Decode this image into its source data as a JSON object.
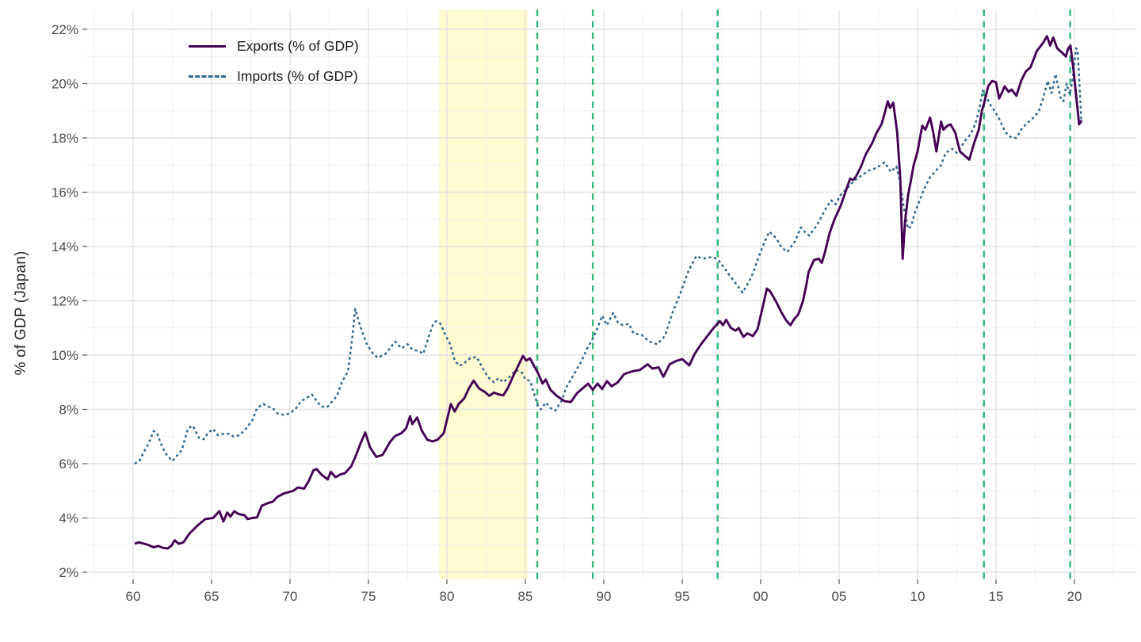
{
  "chart_data": {
    "type": "line",
    "title": "",
    "xlabel": "",
    "ylabel": "% of GDP (Japan)",
    "xlim": [
      1957.1,
      2023.9
    ],
    "ylim": [
      1.74,
      22.73
    ],
    "grid": {
      "major_color": "#e3e3e3",
      "minor_color": "#f0f0f0",
      "on": true
    },
    "x_ticks": {
      "values": [
        1960,
        1965,
        1970,
        1975,
        1980,
        1985,
        1990,
        1995,
        2000,
        2005,
        2010,
        2015,
        2020
      ],
      "labels": [
        "60",
        "65",
        "70",
        "75",
        "80",
        "85",
        "90",
        "95",
        "00",
        "05",
        "10",
        "15",
        "20"
      ]
    },
    "y_ticks": {
      "values": [
        2,
        4,
        6,
        8,
        10,
        12,
        14,
        16,
        18,
        20,
        22
      ],
      "suffix": "%"
    },
    "tick_label_color": "#4d4d4d",
    "band": {
      "from": 1979.5,
      "to": 1985.15,
      "color": "#fde725",
      "opacity": 0.22
    },
    "vlines": {
      "color": "#35b779",
      "years": [
        1985.76,
        1989.3,
        1997.26,
        2014.23,
        2019.73
      ]
    },
    "legend_position": "top-left-inside",
    "series": [
      {
        "name": "Exports (% of GDP)",
        "color": "#440154",
        "style": "solid",
        "width": 2.9,
        "x": [
          1960.1,
          1960.35,
          1960.6,
          1961.0,
          1961.3,
          1961.6,
          1961.9,
          1962.2,
          1962.45,
          1962.65,
          1962.9,
          1963.2,
          1963.6,
          1964.1,
          1964.6,
          1965.1,
          1965.5,
          1965.75,
          1966.0,
          1966.2,
          1966.45,
          1966.7,
          1967.1,
          1967.3,
          1967.6,
          1967.9,
          1968.2,
          1968.6,
          1968.9,
          1969.2,
          1969.6,
          1969.9,
          1970.2,
          1970.5,
          1970.9,
          1971.2,
          1971.5,
          1971.7,
          1972.0,
          1972.4,
          1972.6,
          1972.9,
          1973.2,
          1973.5,
          1973.9,
          1974.2,
          1974.5,
          1974.8,
          1975.1,
          1975.5,
          1975.9,
          1976.4,
          1976.7,
          1977.1,
          1977.4,
          1977.65,
          1977.8,
          1978.1,
          1978.4,
          1978.75,
          1979.1,
          1979.4,
          1979.8,
          1980.0,
          1980.25,
          1980.5,
          1980.75,
          1981.1,
          1981.4,
          1981.7,
          1982.05,
          1982.4,
          1982.7,
          1983.0,
          1983.3,
          1983.6,
          1983.9,
          1984.2,
          1984.5,
          1984.85,
          1985.05,
          1985.3,
          1985.55,
          1985.8,
          1986.1,
          1986.3,
          1986.6,
          1987.0,
          1987.5,
          1987.9,
          1988.3,
          1988.7,
          1989.0,
          1989.3,
          1989.6,
          1989.9,
          1990.2,
          1990.5,
          1990.9,
          1991.3,
          1991.6,
          1991.9,
          1992.3,
          1992.8,
          1993.1,
          1993.5,
          1993.8,
          1994.2,
          1994.6,
          1995.0,
          1995.45,
          1995.8,
          1996.2,
          1996.6,
          1997.0,
          1997.4,
          1997.6,
          1997.8,
          1998.1,
          1998.4,
          1998.6,
          1998.9,
          1999.15,
          1999.5,
          1999.8,
          2000.1,
          2000.4,
          2000.6,
          2001.0,
          2001.3,
          2001.6,
          2001.9,
          2002.1,
          2002.4,
          2002.7,
          2002.9,
          2003.05,
          2003.4,
          2003.7,
          2003.9,
          2004.1,
          2004.4,
          2004.7,
          2005.1,
          2005.4,
          2005.7,
          2005.9,
          2006.1,
          2006.4,
          2006.7,
          2007.1,
          2007.4,
          2007.7,
          2007.9,
          2008.1,
          2008.25,
          2008.45,
          2008.7,
          2008.9,
          2009.05,
          2009.2,
          2009.4,
          2009.55,
          2009.75,
          2010.0,
          2010.3,
          2010.5,
          2010.8,
          2011.0,
          2011.2,
          2011.5,
          2011.65,
          2011.9,
          2012.1,
          2012.4,
          2012.7,
          2013.0,
          2013.3,
          2013.6,
          2013.9,
          2014.1,
          2014.25,
          2014.5,
          2014.75,
          2015.0,
          2015.2,
          2015.4,
          2015.55,
          2015.8,
          2016.0,
          2016.3,
          2016.6,
          2016.9,
          2017.2,
          2017.6,
          2018.0,
          2018.25,
          2018.45,
          2018.65,
          2018.9,
          2019.2,
          2019.45,
          2019.6,
          2019.75,
          2019.95,
          2020.1,
          2020.3,
          2020.45
        ],
        "y": [
          3.05,
          3.1,
          3.07,
          3.0,
          2.92,
          2.97,
          2.9,
          2.88,
          2.98,
          3.18,
          3.05,
          3.1,
          3.43,
          3.72,
          3.96,
          4.0,
          4.25,
          3.87,
          4.2,
          4.05,
          4.25,
          4.15,
          4.1,
          3.96,
          4.0,
          4.02,
          4.45,
          4.55,
          4.6,
          4.78,
          4.9,
          4.95,
          5.0,
          5.12,
          5.08,
          5.37,
          5.76,
          5.8,
          5.6,
          5.42,
          5.7,
          5.5,
          5.6,
          5.65,
          5.9,
          6.3,
          6.75,
          7.15,
          6.6,
          6.25,
          6.32,
          6.82,
          7.02,
          7.12,
          7.3,
          7.75,
          7.46,
          7.7,
          7.22,
          6.88,
          6.82,
          6.88,
          7.12,
          7.6,
          8.2,
          7.92,
          8.2,
          8.4,
          8.77,
          9.06,
          8.77,
          8.65,
          8.5,
          8.62,
          8.55,
          8.52,
          8.8,
          9.2,
          9.55,
          9.97,
          9.8,
          9.88,
          9.6,
          9.35,
          8.95,
          9.1,
          8.72,
          8.5,
          8.3,
          8.27,
          8.6,
          8.8,
          8.95,
          8.72,
          8.95,
          8.75,
          9.04,
          8.85,
          9.0,
          9.3,
          9.36,
          9.41,
          9.45,
          9.66,
          9.5,
          9.55,
          9.2,
          9.66,
          9.78,
          9.85,
          9.62,
          10.05,
          10.4,
          10.7,
          11.0,
          11.25,
          11.1,
          11.3,
          11.0,
          10.9,
          11.0,
          10.67,
          10.8,
          10.7,
          10.95,
          11.7,
          12.45,
          12.35,
          11.95,
          11.6,
          11.3,
          11.1,
          11.3,
          11.5,
          12.0,
          12.55,
          13.05,
          13.5,
          13.55,
          13.4,
          13.8,
          14.5,
          15.0,
          15.5,
          16.0,
          16.5,
          16.45,
          16.6,
          16.95,
          17.4,
          17.8,
          18.2,
          18.5,
          18.9,
          19.35,
          19.1,
          19.3,
          18.2,
          16.5,
          13.55,
          14.9,
          15.9,
          16.35,
          17.0,
          17.5,
          18.45,
          18.3,
          18.75,
          18.2,
          17.5,
          18.6,
          18.3,
          18.45,
          18.5,
          18.2,
          17.5,
          17.35,
          17.2,
          17.8,
          18.3,
          19.0,
          19.3,
          19.9,
          20.1,
          20.05,
          19.45,
          19.7,
          19.9,
          19.7,
          19.78,
          19.55,
          20.1,
          20.45,
          20.6,
          21.2,
          21.5,
          21.75,
          21.4,
          21.7,
          21.3,
          21.15,
          21.0,
          21.3,
          21.4,
          20.45,
          19.6,
          18.5,
          18.65
        ]
      },
      {
        "name": "Imports (% of GDP)",
        "color": "#31688e",
        "style": "dashed",
        "width": 2.5,
        "dash": [
          3.2,
          3.6
        ],
        "x": [
          1960.1,
          1960.4,
          1960.7,
          1961.0,
          1961.3,
          1961.5,
          1961.8,
          1962.1,
          1962.5,
          1962.8,
          1963.1,
          1963.5,
          1963.8,
          1964.2,
          1964.5,
          1964.8,
          1965.1,
          1965.4,
          1965.8,
          1966.1,
          1966.4,
          1966.8,
          1967.2,
          1967.6,
          1967.9,
          1968.3,
          1968.6,
          1968.9,
          1969.2,
          1969.6,
          1970.0,
          1970.4,
          1970.7,
          1971.0,
          1971.4,
          1971.7,
          1972.0,
          1972.4,
          1972.7,
          1973.0,
          1973.3,
          1973.7,
          1974.0,
          1974.15,
          1974.4,
          1974.7,
          1974.9,
          1975.3,
          1975.6,
          1976.1,
          1976.5,
          1976.7,
          1977.1,
          1977.5,
          1977.8,
          1978.2,
          1978.5,
          1978.8,
          1979.1,
          1979.3,
          1979.6,
          1979.9,
          1980.2,
          1980.5,
          1980.8,
          1981.1,
          1981.5,
          1981.9,
          1982.2,
          1982.6,
          1983.0,
          1983.3,
          1983.6,
          1984.0,
          1984.4,
          1984.8,
          1985.0,
          1985.3,
          1985.6,
          1985.8,
          1986.0,
          1986.3,
          1986.6,
          1986.9,
          1987.3,
          1987.6,
          1988.1,
          1988.6,
          1988.9,
          1989.3,
          1989.6,
          1989.9,
          1990.2,
          1990.6,
          1990.9,
          1991.2,
          1991.6,
          1991.9,
          1992.4,
          1992.9,
          1993.4,
          1993.9,
          1994.4,
          1994.9,
          1995.4,
          1995.9,
          1996.3,
          1996.7,
          1997.0,
          1997.3,
          1997.7,
          1998.0,
          1998.4,
          1998.85,
          1999.2,
          1999.5,
          1999.8,
          2000.2,
          2000.55,
          2001.0,
          2001.35,
          2001.7,
          2002.2,
          2002.55,
          2002.8,
          2003.1,
          2003.6,
          2004.1,
          2004.5,
          2004.75,
          2005.1,
          2005.6,
          2006.0,
          2006.4,
          2006.9,
          2007.4,
          2007.9,
          2008.3,
          2008.65,
          2008.9,
          2009.1,
          2009.4,
          2009.6,
          2009.8,
          2010.1,
          2010.4,
          2010.8,
          2011.1,
          2011.5,
          2011.8,
          2012.2,
          2012.5,
          2012.8,
          2013.1,
          2013.4,
          2013.7,
          2013.95,
          2014.15,
          2014.4,
          2014.6,
          2014.85,
          2015.2,
          2015.6,
          2016.0,
          2016.3,
          2016.6,
          2016.9,
          2017.3,
          2017.7,
          2018.0,
          2018.3,
          2018.55,
          2018.8,
          2019.1,
          2019.3,
          2019.5,
          2019.7,
          2019.9,
          2020.1,
          2020.2,
          2020.45
        ],
        "y": [
          6.0,
          6.1,
          6.45,
          6.75,
          7.2,
          7.15,
          6.7,
          6.35,
          6.1,
          6.3,
          6.5,
          7.3,
          7.4,
          6.95,
          6.9,
          7.15,
          7.28,
          7.05,
          7.1,
          7.1,
          7.0,
          7.05,
          7.3,
          7.6,
          8.05,
          8.2,
          8.1,
          8.05,
          7.85,
          7.8,
          7.85,
          8.05,
          8.3,
          8.4,
          8.55,
          8.3,
          8.1,
          8.1,
          8.3,
          8.5,
          9.0,
          9.4,
          10.8,
          11.7,
          11.2,
          10.7,
          10.4,
          10.05,
          9.9,
          10.05,
          10.35,
          10.5,
          10.25,
          10.4,
          10.2,
          10.15,
          10.05,
          10.6,
          11.1,
          11.25,
          11.15,
          10.75,
          10.4,
          9.8,
          9.6,
          9.7,
          9.9,
          9.93,
          9.6,
          9.2,
          9.0,
          9.15,
          9.0,
          9.2,
          9.45,
          9.35,
          9.1,
          9.05,
          8.5,
          8.15,
          8.0,
          8.25,
          8.05,
          7.95,
          8.3,
          8.8,
          9.3,
          9.8,
          10.2,
          10.6,
          11.0,
          11.45,
          11.1,
          11.55,
          11.2,
          11.1,
          11.15,
          10.8,
          10.75,
          10.5,
          10.4,
          10.7,
          11.6,
          12.3,
          13.1,
          13.65,
          13.55,
          13.6,
          13.6,
          13.5,
          13.2,
          12.95,
          12.65,
          12.3,
          12.65,
          13.0,
          13.5,
          14.1,
          14.55,
          14.3,
          13.95,
          13.8,
          14.2,
          14.7,
          14.55,
          14.4,
          14.8,
          15.35,
          15.7,
          15.55,
          15.9,
          16.2,
          16.45,
          16.6,
          16.8,
          16.9,
          17.1,
          16.75,
          16.95,
          16.35,
          15.5,
          14.65,
          14.75,
          15.2,
          15.65,
          16.1,
          16.55,
          16.75,
          17.0,
          17.45,
          17.6,
          17.45,
          17.7,
          17.95,
          18.15,
          18.55,
          19.1,
          19.75,
          19.5,
          19.25,
          19.05,
          18.7,
          18.2,
          18.0,
          18.0,
          18.3,
          18.5,
          18.7,
          18.95,
          19.45,
          20.1,
          19.65,
          20.35,
          19.5,
          19.35,
          20.0,
          19.6,
          20.2,
          21.3,
          21.25,
          18.55
        ]
      }
    ]
  },
  "legend": {
    "items": [
      {
        "label": "Exports (% of GDP)"
      },
      {
        "label": "Imports (% of GDP)"
      }
    ]
  }
}
